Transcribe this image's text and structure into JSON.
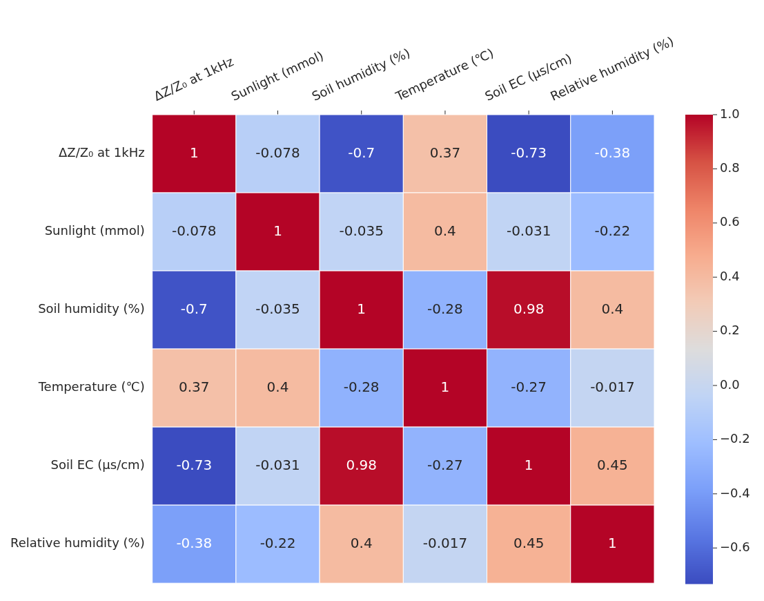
{
  "chart_data": {
    "type": "heatmap",
    "categories": [
      "ΔZ/Z₀ at 1kHz",
      "Sunlight (mmol)",
      "Soil humidity (%)",
      "Temperature (℃)",
      "Soil EC (μs/cm)",
      "Relative humidity (%)"
    ],
    "y_categories": [
      "ΔZ/Z₀ at 1kHz",
      "Sunlight (mmol)",
      "Soil humidity (%)",
      "Temperature (℃)",
      "Soil EC (μs/cm)",
      "Relative humidity (%)"
    ],
    "cells": [
      [
        1,
        -0.078,
        -0.7,
        0.37,
        -0.73,
        -0.38
      ],
      [
        -0.078,
        1,
        -0.035,
        0.4,
        -0.031,
        -0.22
      ],
      [
        -0.7,
        -0.035,
        1,
        -0.28,
        0.98,
        0.4
      ],
      [
        0.37,
        0.4,
        -0.28,
        1,
        -0.27,
        -0.017
      ],
      [
        -0.73,
        -0.031,
        0.98,
        -0.27,
        1,
        0.45
      ],
      [
        -0.38,
        -0.22,
        0.4,
        -0.017,
        0.45,
        1
      ]
    ],
    "data_labels": true,
    "clim": [
      -0.73,
      1
    ],
    "cticks": [
      {
        "value": -0.6,
        "label": "−0.6"
      },
      {
        "value": -0.4,
        "label": "−0.4"
      },
      {
        "value": -0.2,
        "label": "−0.2"
      },
      {
        "value": 0,
        "label": "0.0"
      },
      {
        "value": 0.2,
        "label": "0.2"
      },
      {
        "value": 0.4,
        "label": "0.4"
      },
      {
        "value": 0.6,
        "label": "0.6"
      },
      {
        "value": 0.8,
        "label": "0.8"
      },
      {
        "value": 1,
        "label": "1.0"
      }
    ]
  }
}
